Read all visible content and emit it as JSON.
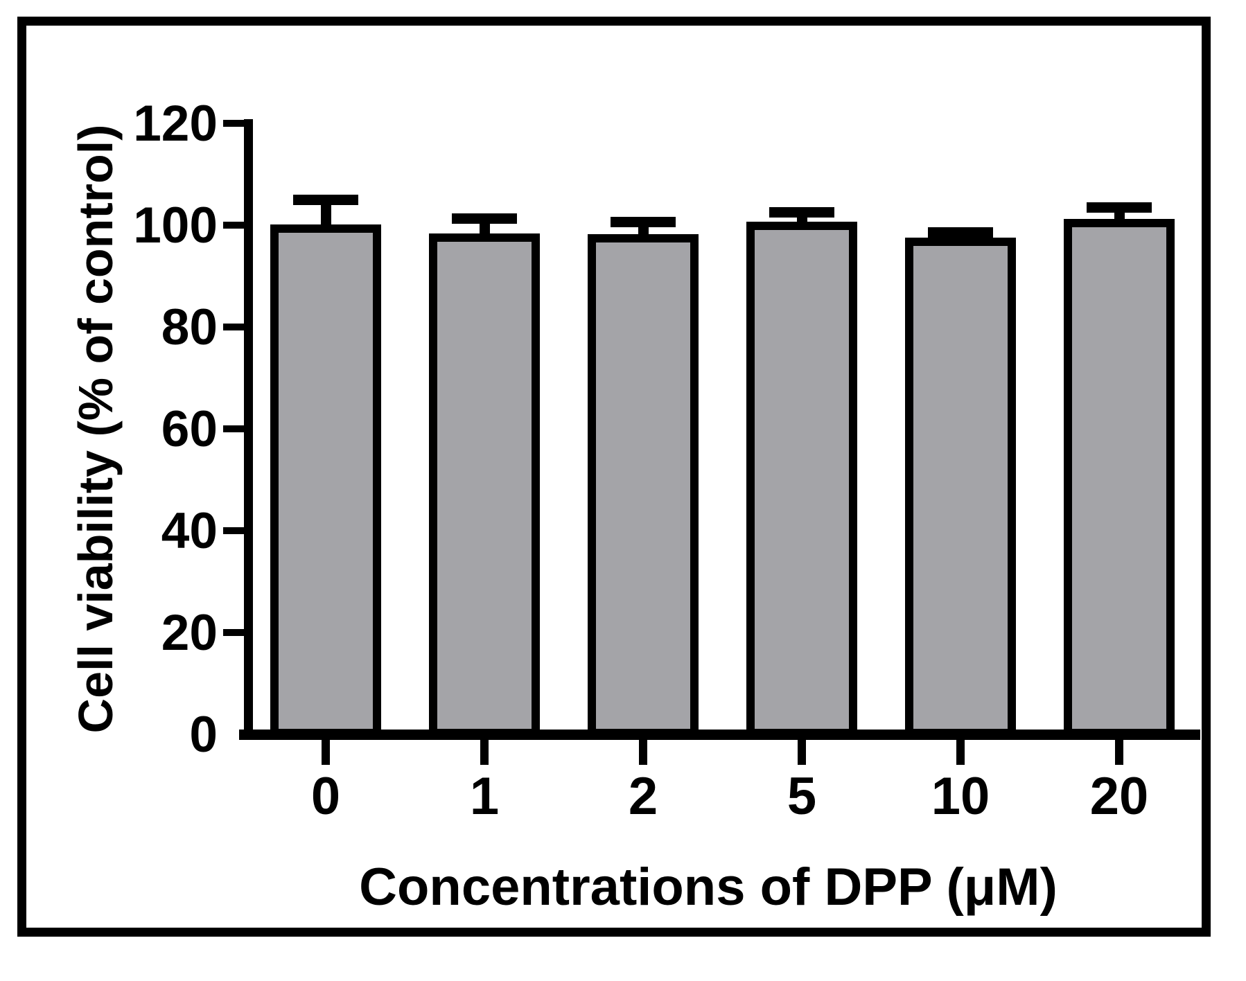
{
  "figure": {
    "background": "#ffffff",
    "border_color": "#000000"
  },
  "chart_data": {
    "type": "bar",
    "title": "",
    "xlabel": "Concentrations of DPP (μM)",
    "ylabel": "Cell viability (% of control)",
    "categories": [
      "0",
      "1",
      "2",
      "5",
      "10",
      "20"
    ],
    "values": [
      100.2,
      98.4,
      98.2,
      100.7,
      97.5,
      101.2
    ],
    "errors_upper": [
      5.8,
      3.9,
      3.4,
      2.9,
      2.1,
      3.3
    ],
    "ylim": [
      0,
      120
    ],
    "yticks": [
      0,
      20,
      40,
      60,
      80,
      100,
      120
    ],
    "grid": false,
    "legend": "none",
    "bar_fill": "#A4A4A8",
    "bar_border": "#000000",
    "error_color": "#000000",
    "axis_color": "#000000"
  }
}
